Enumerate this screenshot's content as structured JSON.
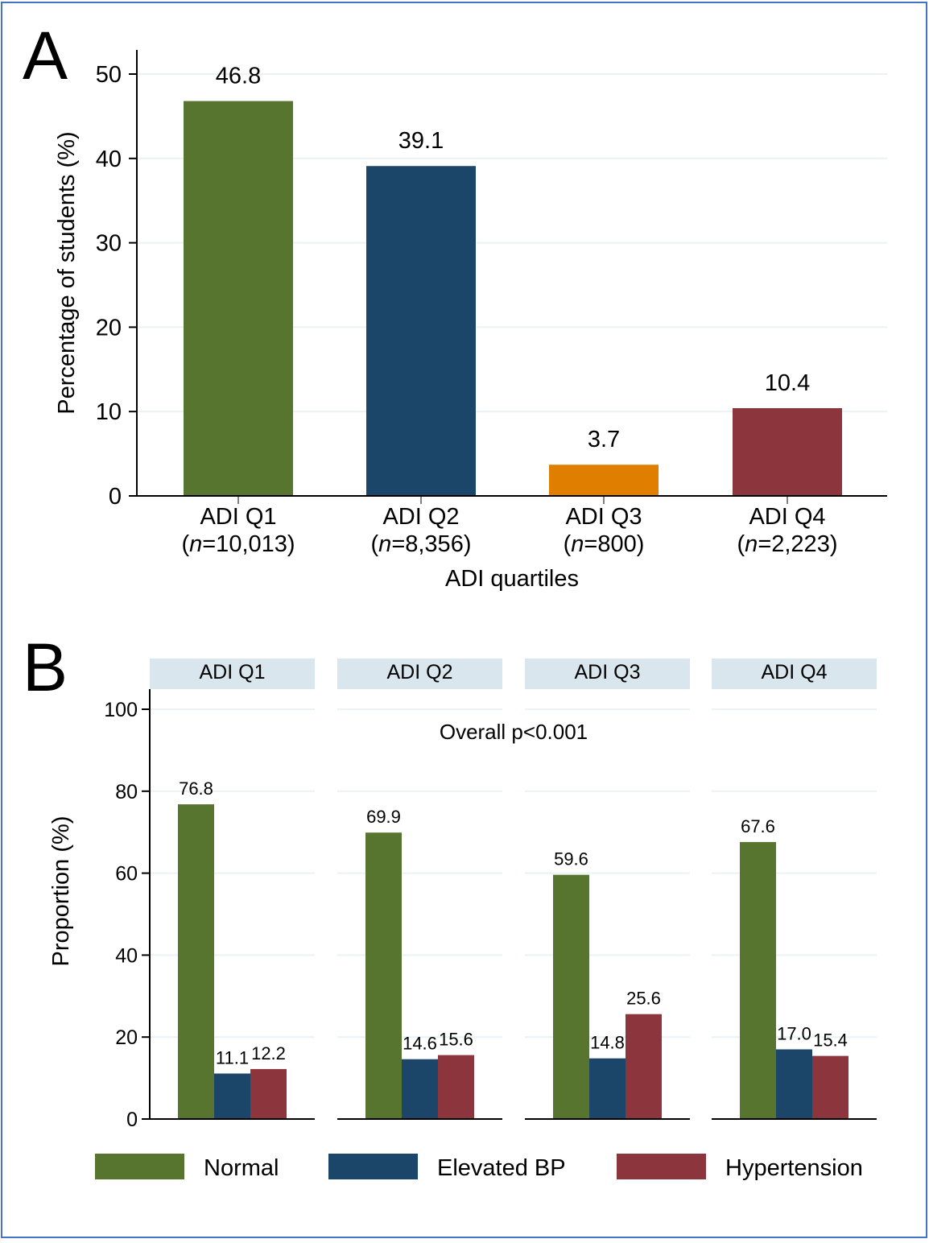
{
  "chart_data": [
    {
      "panel_letter": "A",
      "type": "bar",
      "categories": [
        "ADI Q1",
        "ADI Q2",
        "ADI Q3",
        "ADI Q4"
      ],
      "category_ns": [
        "=10,013)",
        "=8,356)",
        "=800)",
        "=2,223)"
      ],
      "n_prefix": "(",
      "n_symbol": "n",
      "values": [
        46.8,
        39.1,
        3.7,
        10.4
      ],
      "value_labels": [
        "46.8",
        "39.1",
        "3.7",
        "10.4"
      ],
      "colors": [
        "#587530",
        "#1c4669",
        "#e07e00",
        "#8c353c"
      ],
      "xlabel": "ADI quartiles",
      "ylabel": "Percentage of students (%)",
      "ylim": [
        0,
        50
      ],
      "yticks": [
        0,
        10,
        20,
        30,
        40,
        50
      ],
      "grid": true
    },
    {
      "panel_letter": "B",
      "type": "bar",
      "facets": [
        "ADI Q1",
        "ADI Q2",
        "ADI Q3",
        "ADI Q4"
      ],
      "series": [
        {
          "name": "Normal",
          "color": "#587530",
          "values": [
            76.8,
            69.9,
            59.6,
            67.6
          ],
          "labels": [
            "76.8",
            "69.9",
            "59.6",
            "67.6"
          ]
        },
        {
          "name": "Elevated BP",
          "color": "#1c4669",
          "values": [
            11.1,
            14.6,
            14.8,
            17.0
          ],
          "labels": [
            "11.1",
            "14.6",
            "14.8",
            "17.0"
          ]
        },
        {
          "name": "Hypertension",
          "color": "#8c353c",
          "values": [
            12.2,
            15.6,
            25.6,
            15.4
          ],
          "labels": [
            "12.2",
            "15.6",
            "25.6",
            "15.4"
          ]
        }
      ],
      "annotation": "Overall p<0.001",
      "ylabel": "Proportion (%)",
      "ylim": [
        0,
        100
      ],
      "yticks": [
        0,
        20,
        40,
        60,
        80,
        100
      ],
      "grid": true,
      "legend_position": "bottom",
      "facet_strip_color": "#d9e6ee"
    }
  ],
  "style": {
    "border_color": "#4472c4",
    "grid_color": "#eaf2f3"
  }
}
